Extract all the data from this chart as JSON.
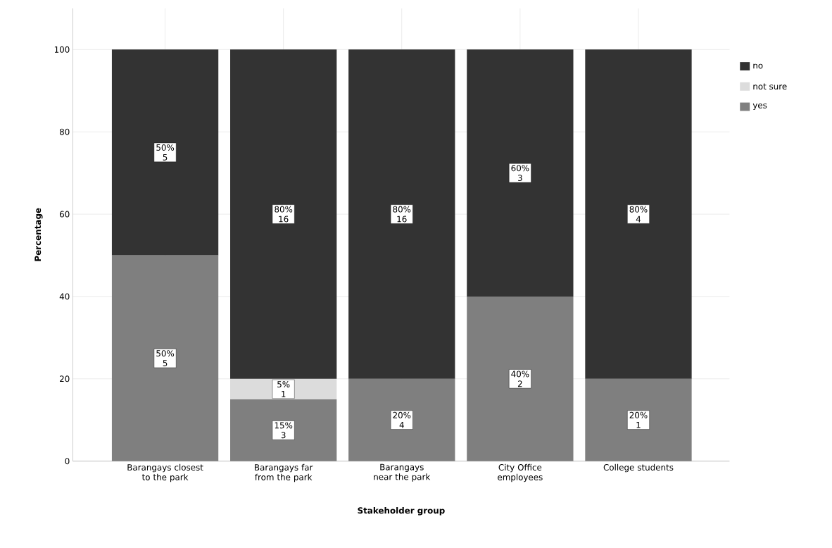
{
  "chart_data": {
    "type": "bar",
    "stacked": true,
    "xlabel": "Stakeholder group",
    "ylabel": "Percentage",
    "categories": [
      "Barangays closest to the park",
      "Barangays far from the park",
      "Barangays near the park",
      "City Office employees",
      "College students"
    ],
    "series": [
      {
        "name": "yes",
        "color": "#7f7f7f",
        "values": [
          50,
          15,
          20,
          40,
          20
        ],
        "value_labels": [
          "50% 5",
          "15% 3",
          "20% 4",
          "40% 2",
          "20% 1"
        ]
      },
      {
        "name": "not sure",
        "color": "#dcdcdc",
        "values": [
          null,
          5,
          null,
          null,
          null
        ],
        "value_labels": [
          null,
          "5% 1",
          null,
          null,
          null
        ]
      },
      {
        "name": "no",
        "color": "#333333",
        "values": [
          50,
          80,
          80,
          60,
          80
        ],
        "value_labels": [
          "50% 5",
          "80% 16",
          "80% 16",
          "60% 3",
          "80% 4"
        ]
      }
    ],
    "ylim": [
      0,
      110
    ],
    "yticks": [
      0,
      20,
      40,
      60,
      80,
      100
    ],
    "grid": true,
    "legend": "right"
  }
}
